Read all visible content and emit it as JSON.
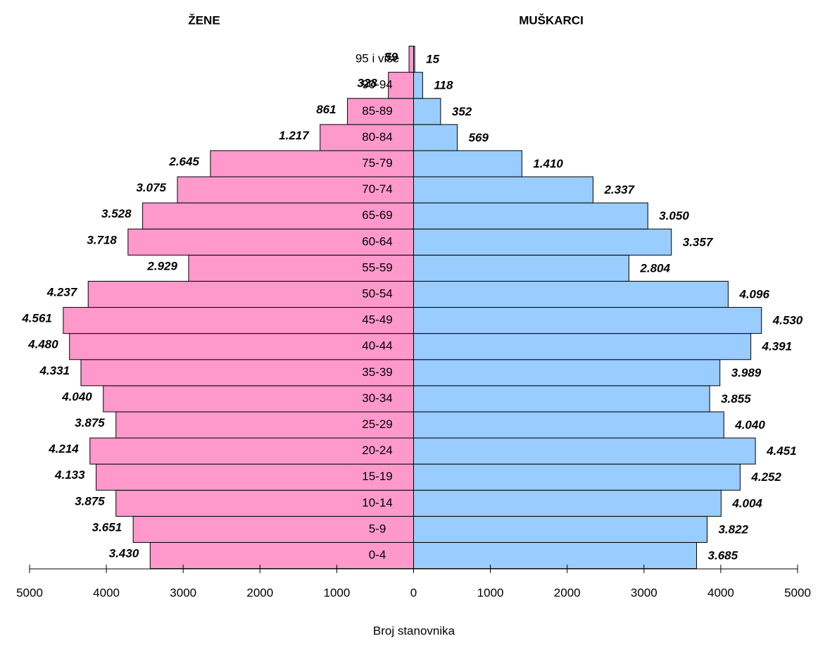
{
  "chart_data": {
    "type": "pyramid",
    "x_label": "Broj stanovnika",
    "categories": [
      "0-4",
      "5-9",
      "10-14",
      "15-19",
      "20-24",
      "25-29",
      "30-34",
      "35-39",
      "40-44",
      "45-49",
      "50-54",
      "55-59",
      "60-64",
      "65-69",
      "70-74",
      "75-79",
      "80-84",
      "85-89",
      "90-94",
      "95 i više"
    ],
    "series": [
      {
        "name": "ŽENE",
        "color": "#ff99cc",
        "side": "left",
        "values": [
          3430,
          3651,
          3875,
          4133,
          4214,
          3875,
          4040,
          4331,
          4480,
          4561,
          4237,
          2929,
          3718,
          3528,
          3075,
          2645,
          1217,
          861,
          328,
          59
        ],
        "value_labels": [
          "3.430",
          "3.651",
          "3.875",
          "4.133",
          "4.214",
          "3.875",
          "4.040",
          "4.331",
          "4.480",
          "4.561",
          "4.237",
          "2.929",
          "3.718",
          "3.528",
          "3.075",
          "2.645",
          "1.217",
          "861",
          "328",
          "59"
        ]
      },
      {
        "name": "MUŠKARCI",
        "color": "#99ccff",
        "side": "right",
        "values": [
          3685,
          3822,
          4004,
          4252,
          4451,
          4040,
          3855,
          3989,
          4391,
          4530,
          4096,
          2804,
          3357,
          3050,
          2337,
          1410,
          569,
          352,
          118,
          15
        ],
        "value_labels": [
          "3.685",
          "3.822",
          "4.004",
          "4.252",
          "4.451",
          "4.040",
          "3.855",
          "3.989",
          "4.391",
          "4.530",
          "4.096",
          "2.804",
          "3.357",
          "3.050",
          "2.337",
          "1.410",
          "569",
          "352",
          "118",
          "15"
        ]
      }
    ],
    "xlim": [
      -5000,
      5000
    ],
    "xticks": [
      {
        "value": -5000,
        "label": "5000"
      },
      {
        "value": -4000,
        "label": "4000"
      },
      {
        "value": -3000,
        "label": "3000"
      },
      {
        "value": -2000,
        "label": "2000"
      },
      {
        "value": -1000,
        "label": "1000"
      },
      0,
      1000,
      2000,
      3000,
      4000,
      5000
    ]
  }
}
